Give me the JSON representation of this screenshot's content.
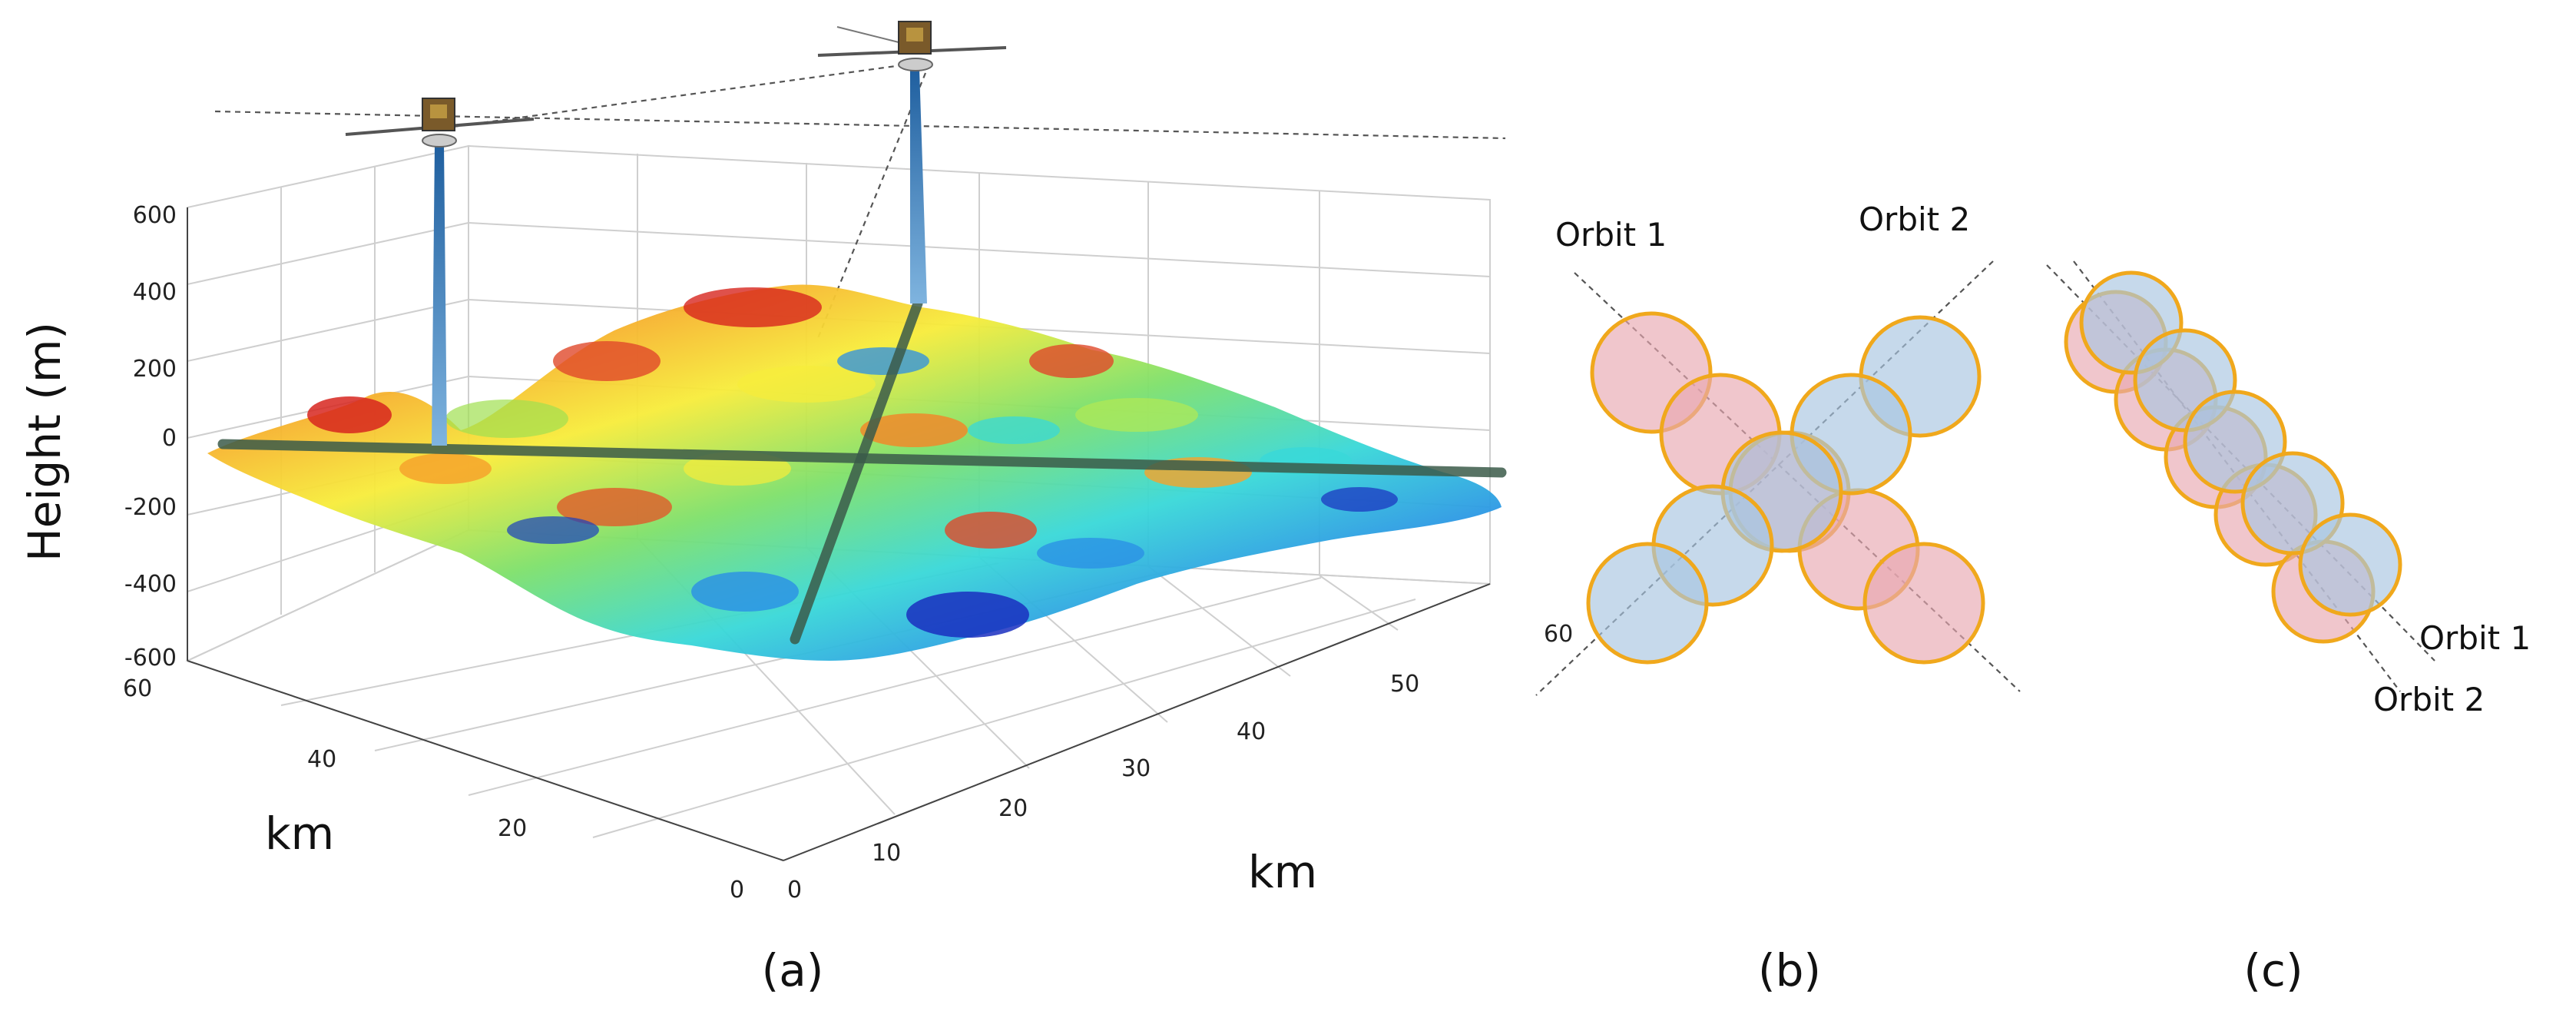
{
  "panels": {
    "a": {
      "label": "(a)",
      "z_axis": {
        "label": "Height (m)",
        "ticks": [
          "600",
          "400",
          "200",
          "0",
          "-200",
          "-400",
          "-600"
        ]
      },
      "left_axis": {
        "label": "km",
        "ticks": [
          "60",
          "40",
          "20",
          "0"
        ]
      },
      "right_axis": {
        "label": "km",
        "ticks": [
          "0",
          "10",
          "20",
          "30",
          "40",
          "50",
          "60"
        ]
      },
      "satellites": [
        "satellite-1",
        "satellite-2"
      ]
    },
    "b": {
      "label": "(b)",
      "orbit1_label": "Orbit 1",
      "orbit2_label": "Orbit 2"
    },
    "c": {
      "label": "(c)",
      "orbit1_label": "Orbit 1",
      "orbit2_label": "Orbit 2"
    }
  },
  "colors": {
    "footprint_orbit1": "#e8a8b0",
    "footprint_orbit2": "#a7c4e0",
    "footprint_edge": "#f0a81c",
    "ground_track": "#3b5b4a",
    "beam": "#3a7fbf"
  }
}
